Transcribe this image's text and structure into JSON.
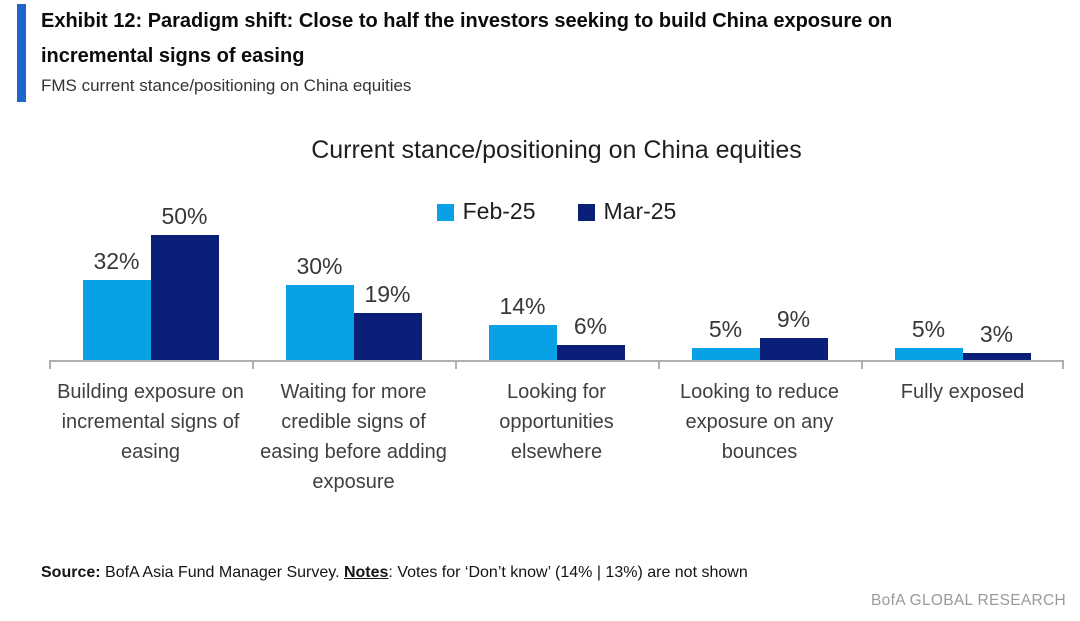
{
  "header": {
    "exhibit_title": "Exhibit 12: Paradigm shift: Close to half the investors seeking to build China exposure on incremental signs of easing",
    "subtitle": "FMS current stance/positioning on China equities"
  },
  "chart_data": {
    "type": "bar",
    "title": "Current stance/positioning on China equities",
    "categories": [
      "Building exposure on incremental signs of easing",
      "Waiting for more credible signs of easing before adding exposure",
      "Looking for opportunities elsewhere",
      "Looking to reduce exposure on any bounces",
      "Fully exposed"
    ],
    "series": [
      {
        "name": "Feb-25",
        "color": "#09A1E6",
        "values": [
          32,
          30,
          14,
          5,
          5
        ]
      },
      {
        "name": "Mar-25",
        "color": "#0A1F78",
        "values": [
          50,
          19,
          6,
          9,
          3
        ]
      }
    ],
    "value_suffix": "%",
    "ylim": [
      0,
      55
    ],
    "grid": false,
    "legend_position": "top-center",
    "axis_color": "#B0B0B0"
  },
  "footer": {
    "source_label": "Source:",
    "source_text": " BofA Asia Fund Manager Survey. ",
    "notes_label": "Notes",
    "notes_text": ": Votes for ‘Don’t know’ (14% | 13%) are not shown",
    "brand": "BofA GLOBAL RESEARCH"
  },
  "colors": {
    "accent_bar": "#2065C9",
    "feb_25": "#09A1E6",
    "mar_25": "#0A1F78",
    "axis": "#B0B0B0",
    "brand_text": "#9A9A9A"
  }
}
